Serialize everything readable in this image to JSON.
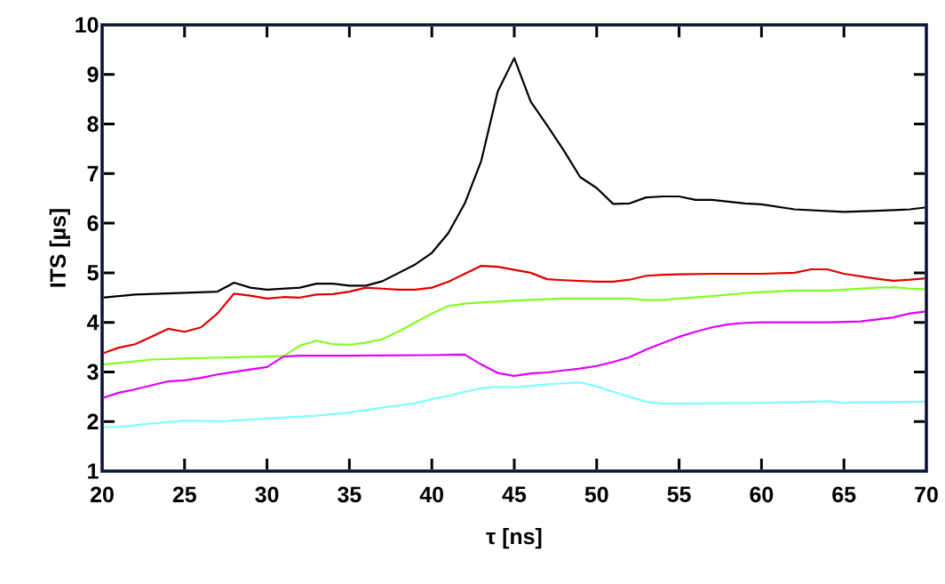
{
  "chart_data": {
    "type": "line",
    "xlabel": "τ [ns]",
    "ylabel": "ITS [µs]",
    "xlim": [
      20,
      70
    ],
    "xticks": [
      20,
      25,
      30,
      35,
      40,
      45,
      50,
      55,
      60,
      65,
      70
    ],
    "ylim": [
      1,
      10
    ],
    "yticks": [
      1,
      2,
      3,
      4,
      5,
      6,
      7,
      8,
      9,
      10
    ],
    "grid": false,
    "marker": "none",
    "line_style": "solid",
    "series": [
      {
        "color": "#000000",
        "x": [
          20,
          22,
          27,
          28,
          29,
          30,
          32,
          33,
          34,
          35,
          36,
          37,
          38,
          39,
          40,
          41,
          42,
          43,
          44,
          45,
          46,
          47,
          48,
          49,
          50,
          51,
          52,
          53,
          54,
          55,
          56,
          57,
          59,
          60,
          62,
          65,
          67,
          69,
          70
        ],
        "values": [
          4.5,
          4.56,
          4.62,
          4.8,
          4.7,
          4.66,
          4.7,
          4.78,
          4.78,
          4.74,
          4.74,
          4.83,
          5.0,
          5.17,
          5.4,
          5.8,
          6.4,
          7.26,
          8.66,
          9.33,
          8.45,
          7.97,
          7.47,
          6.93,
          6.71,
          6.39,
          6.4,
          6.52,
          6.54,
          6.54,
          6.47,
          6.47,
          6.4,
          6.38,
          6.28,
          6.23,
          6.25,
          6.28,
          6.32
        ]
      },
      {
        "color": "#e00000",
        "x": [
          20,
          21,
          22,
          23,
          24,
          25,
          26,
          27,
          28,
          29,
          30,
          31,
          32,
          33,
          34,
          35,
          36,
          37,
          38,
          39,
          40,
          41,
          42,
          43,
          44,
          46,
          47,
          48,
          50,
          51,
          52,
          53,
          54,
          55,
          57,
          60,
          62,
          63,
          64,
          65,
          67,
          68,
          69,
          70
        ],
        "values": [
          3.37,
          3.49,
          3.56,
          3.71,
          3.87,
          3.81,
          3.9,
          4.18,
          4.58,
          4.54,
          4.48,
          4.51,
          4.5,
          4.56,
          4.57,
          4.62,
          4.7,
          4.68,
          4.66,
          4.66,
          4.7,
          4.82,
          4.98,
          5.14,
          5.12,
          5.0,
          4.87,
          4.85,
          4.82,
          4.82,
          4.86,
          4.94,
          4.96,
          4.97,
          4.98,
          4.98,
          5.0,
          5.07,
          5.07,
          4.98,
          4.88,
          4.84,
          4.86,
          4.89
        ]
      },
      {
        "color": "#80ff20",
        "x": [
          20,
          21,
          23,
          25,
          27,
          30,
          31,
          32,
          33,
          34,
          35,
          36,
          37,
          38,
          39,
          40,
          41,
          42,
          43,
          45,
          48,
          50,
          52,
          53,
          54,
          55,
          57,
          59,
          60,
          62,
          64,
          65,
          67,
          68,
          69,
          70
        ],
        "values": [
          3.15,
          3.18,
          3.25,
          3.27,
          3.29,
          3.31,
          3.32,
          3.53,
          3.63,
          3.56,
          3.55,
          3.59,
          3.66,
          3.82,
          4.0,
          4.18,
          4.33,
          4.38,
          4.4,
          4.44,
          4.48,
          4.48,
          4.48,
          4.45,
          4.45,
          4.48,
          4.53,
          4.59,
          4.61,
          4.64,
          4.64,
          4.66,
          4.7,
          4.71,
          4.68,
          4.67
        ]
      },
      {
        "color": "#e000ff",
        "x": [
          20,
          21,
          22,
          23,
          24,
          25,
          26,
          27,
          28,
          29,
          30,
          31,
          32,
          35,
          40,
          42,
          43,
          44,
          45,
          46,
          47,
          48,
          49,
          50,
          51,
          52,
          53,
          54,
          55,
          56,
          57,
          58,
          59,
          60,
          62,
          64,
          66,
          67,
          68,
          69,
          70
        ],
        "values": [
          2.47,
          2.58,
          2.65,
          2.73,
          2.81,
          2.83,
          2.88,
          2.95,
          3.0,
          3.05,
          3.1,
          3.31,
          3.33,
          3.33,
          3.34,
          3.35,
          3.15,
          2.98,
          2.92,
          2.97,
          2.99,
          3.03,
          3.07,
          3.12,
          3.2,
          3.3,
          3.45,
          3.58,
          3.71,
          3.81,
          3.9,
          3.96,
          3.99,
          4.0,
          4.0,
          4.0,
          4.02,
          4.06,
          4.1,
          4.18,
          4.22
        ]
      },
      {
        "color": "#80ffff",
        "x": [
          20,
          21,
          23,
          24,
          25,
          27,
          30,
          33,
          35,
          37,
          39,
          40,
          41,
          42,
          43,
          44,
          45,
          46,
          47,
          48,
          49,
          50,
          51,
          52,
          53,
          54,
          55,
          60,
          62,
          64,
          65,
          66,
          70
        ],
        "values": [
          1.89,
          1.89,
          1.96,
          1.99,
          2.02,
          2.0,
          2.06,
          2.12,
          2.18,
          2.28,
          2.37,
          2.45,
          2.52,
          2.6,
          2.67,
          2.7,
          2.69,
          2.72,
          2.75,
          2.77,
          2.79,
          2.71,
          2.6,
          2.5,
          2.4,
          2.36,
          2.36,
          2.38,
          2.39,
          2.41,
          2.38,
          2.39,
          2.4
        ]
      }
    ]
  }
}
